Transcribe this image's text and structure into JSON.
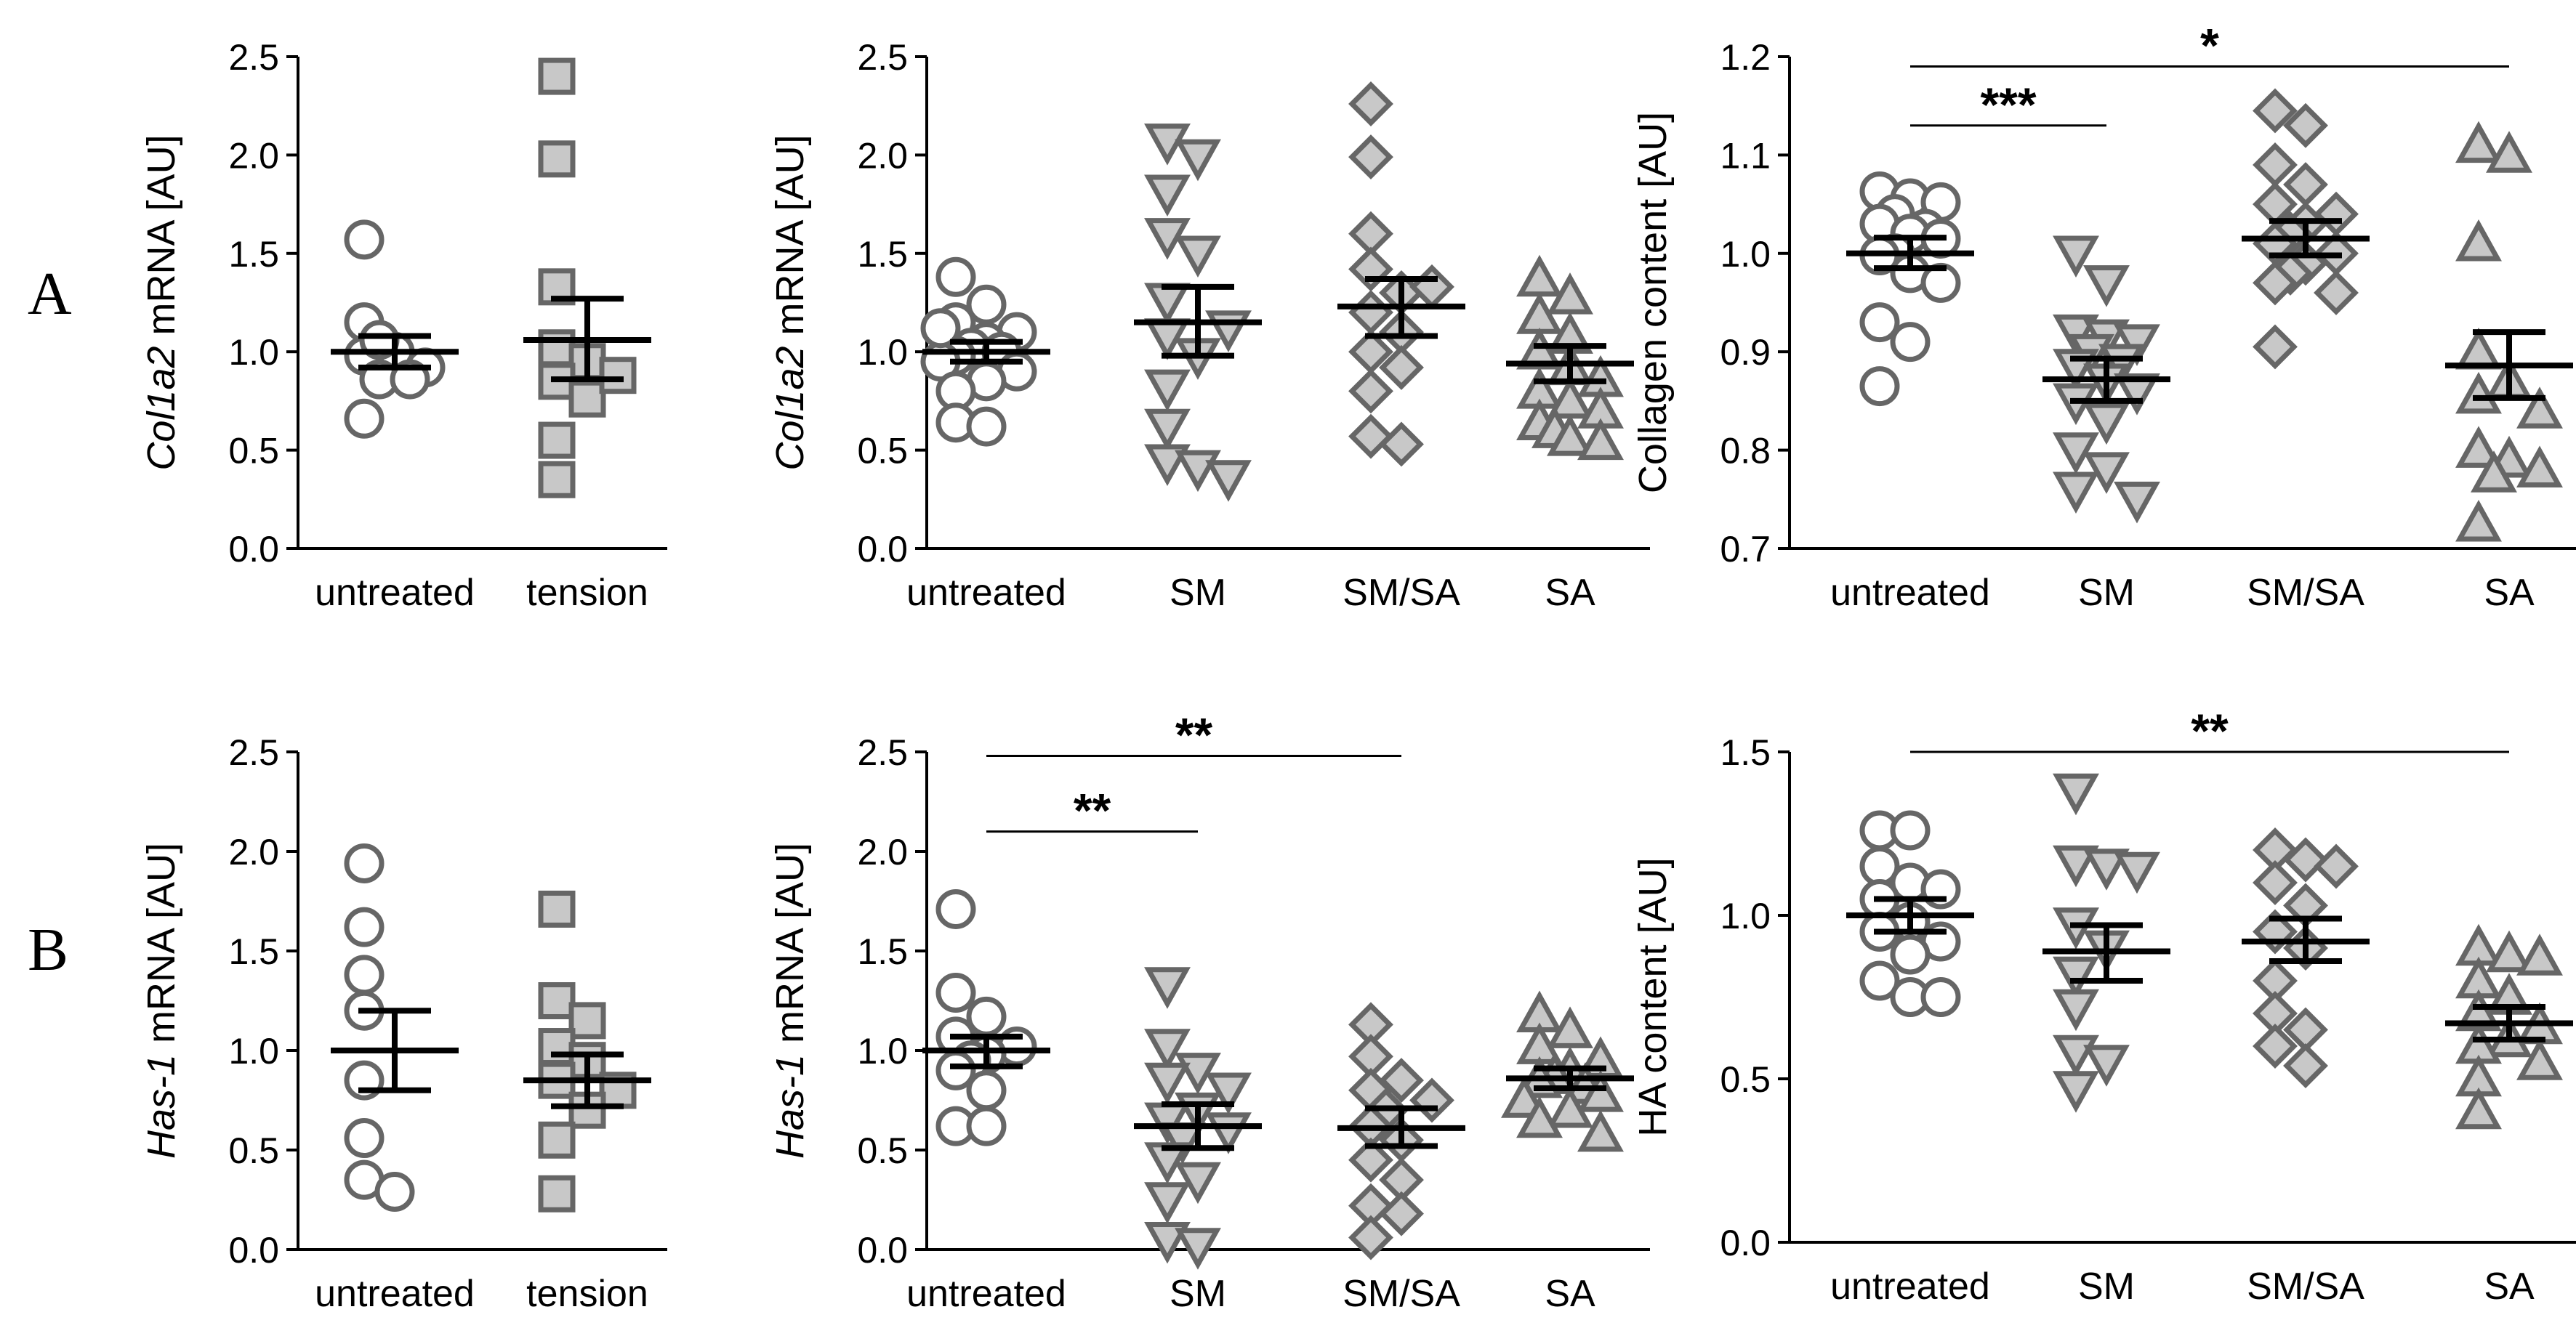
{
  "row_labels": [
    "A",
    "B"
  ],
  "chart_data": [
    {
      "type": "scatter",
      "panel": "A1",
      "ylabel_italic": "Col1a2",
      "ylabel_rest": " mRNA [AU]",
      "ylim": [
        0,
        2.5
      ],
      "yticks": [
        "0.0",
        "0.5",
        "1.0",
        "1.5",
        "2.0",
        "2.5"
      ],
      "categories": [
        "untreated",
        "tension"
      ],
      "groups": [
        {
          "name": "untreated",
          "marker": "circle-open",
          "values": [
            1.57,
            1.15,
            1.0,
            0.98,
            0.92,
            0.86,
            0.86,
            1.06,
            0.66
          ],
          "mean": 1.0,
          "sem_low": 0.92,
          "sem_high": 1.08
        },
        {
          "name": "tension",
          "marker": "square-filled",
          "values": [
            2.4,
            1.98,
            1.33,
            1.02,
            0.95,
            0.85,
            0.76,
            0.55,
            0.35,
            0.88
          ],
          "mean": 1.06,
          "sem_low": 0.86,
          "sem_high": 1.27
        }
      ],
      "significance": []
    },
    {
      "type": "scatter",
      "panel": "A2",
      "ylabel_italic": "Col1a2",
      "ylabel_rest": " mRNA [AU]",
      "ylim": [
        0,
        2.5
      ],
      "yticks": [
        "0.0",
        "0.5",
        "1.0",
        "1.5",
        "2.0",
        "2.5"
      ],
      "categories": [
        "untreated",
        "SM",
        "SM/SA",
        "SA"
      ],
      "groups": [
        {
          "name": "untreated",
          "marker": "circle-open",
          "values": [
            1.38,
            1.24,
            1.15,
            1.1,
            1.05,
            1.02,
            1.0,
            0.98,
            0.95,
            0.9,
            0.85,
            0.8,
            0.64,
            0.62,
            1.12
          ],
          "mean": 1.0,
          "sem_low": 0.95,
          "sem_high": 1.05
        },
        {
          "name": "SM",
          "marker": "triangle-down",
          "values": [
            2.07,
            1.99,
            1.81,
            1.59,
            1.5,
            1.26,
            1.08,
            0.98,
            0.82,
            0.62,
            0.44,
            0.41,
            0.36,
            1.12
          ],
          "mean": 1.15,
          "sem_low": 0.98,
          "sem_high": 1.33
        },
        {
          "name": "SM/SA",
          "marker": "diamond",
          "values": [
            2.26,
            1.99,
            1.6,
            1.42,
            1.3,
            1.2,
            1.1,
            1.0,
            0.92,
            0.8,
            0.57,
            0.53,
            1.33
          ],
          "mean": 1.23,
          "sem_low": 1.08,
          "sem_high": 1.37
        },
        {
          "name": "SA",
          "marker": "triangle-up",
          "values": [
            1.37,
            1.28,
            1.18,
            1.08,
            1.0,
            0.92,
            0.86,
            0.8,
            0.75,
            0.7,
            0.64,
            0.6,
            0.56,
            0.54
          ],
          "mean": 0.94,
          "sem_low": 0.85,
          "sem_high": 1.03
        }
      ],
      "significance": []
    },
    {
      "type": "scatter",
      "panel": "A3",
      "ylabel_italic": "",
      "ylabel_rest": "Collagen content [AU]",
      "ylim": [
        0.7,
        1.2
      ],
      "yticks": [
        "0.7",
        "0.8",
        "0.9",
        "1.0",
        "1.1",
        "1.2"
      ],
      "categories": [
        "untreated",
        "SM",
        "SM/SA",
        "SA"
      ],
      "groups": [
        {
          "name": "untreated",
          "marker": "circle-open",
          "values": [
            1.063,
            1.056,
            1.052,
            1.04,
            1.03,
            1.025,
            1.02,
            1.015,
            1.0,
            0.998,
            0.98,
            0.97,
            0.93,
            0.91,
            0.865
          ],
          "mean": 1.0,
          "sem_low": 0.985,
          "sem_high": 1.016
        },
        {
          "name": "SM",
          "marker": "triangle-down",
          "values": [
            1.0,
            0.97,
            0.92,
            0.915,
            0.91,
            0.9,
            0.89,
            0.885,
            0.87,
            0.86,
            0.85,
            0.83,
            0.8,
            0.78,
            0.76,
            0.75
          ],
          "mean": 0.872,
          "sem_low": 0.85,
          "sem_high": 0.893
        },
        {
          "name": "SM/SA",
          "marker": "diamond",
          "values": [
            1.145,
            1.13,
            1.09,
            1.07,
            1.05,
            1.04,
            1.03,
            1.02,
            1.01,
            1.0,
            0.99,
            0.98,
            0.97,
            0.96,
            0.905
          ],
          "mean": 1.015,
          "sem_low": 0.998,
          "sem_high": 1.033
        },
        {
          "name": "SA",
          "marker": "triangle-up",
          "values": [
            1.11,
            1.1,
            1.01,
            0.9,
            0.87,
            0.855,
            0.84,
            0.8,
            0.79,
            0.78,
            0.775,
            0.725
          ],
          "mean": 0.886,
          "sem_low": 0.853,
          "sem_high": 0.92
        }
      ],
      "significance": [
        {
          "from": 0,
          "to": 1,
          "y": 1.13,
          "label": "***"
        },
        {
          "from": 0,
          "to": 3,
          "y": 1.19,
          "label": "*"
        }
      ]
    },
    {
      "type": "scatter",
      "panel": "B1",
      "ylabel_italic": "Has-1",
      "ylabel_rest": " mRNA [AU]",
      "ylim": [
        0,
        2.5
      ],
      "yticks": [
        "0.0",
        "0.5",
        "1.0",
        "1.5",
        "2.0",
        "2.5"
      ],
      "categories": [
        "untreated",
        "tension"
      ],
      "groups": [
        {
          "name": "untreated",
          "marker": "circle-open",
          "values": [
            1.94,
            1.62,
            1.38,
            1.2,
            0.85,
            0.56,
            0.35,
            0.29
          ],
          "mean": 1.0,
          "sem_low": 0.8,
          "sem_high": 1.2
        },
        {
          "name": "tension",
          "marker": "square-filled",
          "values": [
            1.71,
            1.25,
            1.15,
            1.02,
            0.95,
            0.85,
            0.8,
            0.7,
            0.55,
            0.28
          ],
          "mean": 0.85,
          "sem_low": 0.72,
          "sem_high": 0.98
        }
      ],
      "significance": []
    },
    {
      "type": "scatter",
      "panel": "B2",
      "ylabel_italic": "Has-1",
      "ylabel_rest": " mRNA [AU]",
      "ylim": [
        0,
        2.5
      ],
      "yticks": [
        "0.0",
        "0.5",
        "1.0",
        "1.5",
        "2.0",
        "2.5"
      ],
      "categories": [
        "untreated",
        "SM",
        "SM/SA",
        "SA"
      ],
      "groups": [
        {
          "name": "untreated",
          "marker": "circle-open",
          "values": [
            1.71,
            1.29,
            1.17,
            1.07,
            1.02,
            0.98,
            0.95,
            0.9,
            0.8,
            0.62,
            0.62
          ],
          "mean": 1.0,
          "sem_low": 0.92,
          "sem_high": 1.07
        },
        {
          "name": "SM",
          "marker": "triangle-down",
          "values": [
            1.33,
            1.02,
            0.9,
            0.85,
            0.8,
            0.7,
            0.65,
            0.6,
            0.55,
            0.45,
            0.35,
            0.25,
            0.05,
            0.02
          ],
          "mean": 0.62,
          "sem_low": 0.51,
          "sem_high": 0.73
        },
        {
          "name": "SM/SA",
          "marker": "diamond",
          "values": [
            1.13,
            0.97,
            0.85,
            0.8,
            0.75,
            0.7,
            0.62,
            0.55,
            0.45,
            0.35,
            0.22,
            0.18,
            0.06
          ],
          "mean": 0.61,
          "sem_low": 0.52,
          "sem_high": 0.71
        },
        {
          "name": "SA",
          "marker": "triangle-up",
          "values": [
            1.18,
            1.1,
            1.02,
            0.95,
            0.9,
            0.87,
            0.85,
            0.82,
            0.78,
            0.75,
            0.7,
            0.65,
            0.58
          ],
          "mean": 0.86,
          "sem_low": 0.81,
          "sem_high": 0.91
        }
      ],
      "significance": [
        {
          "from": 0,
          "to": 1,
          "y": 2.1,
          "label": "**"
        },
        {
          "from": 0,
          "to": 2,
          "y": 2.48,
          "label": "**"
        }
      ]
    },
    {
      "type": "scatter",
      "panel": "B3",
      "ylabel_italic": "",
      "ylabel_rest": "HA content [AU]",
      "ylim": [
        0,
        1.5
      ],
      "yticks": [
        "0.0",
        "0.5",
        "1.0",
        "1.5"
      ],
      "categories": [
        "untreated",
        "SM",
        "SM/SA",
        "SA"
      ],
      "groups": [
        {
          "name": "untreated",
          "marker": "circle-open",
          "values": [
            1.26,
            1.26,
            1.15,
            1.1,
            1.08,
            1.05,
            0.98,
            0.95,
            0.92,
            0.88,
            0.8,
            0.75,
            0.75
          ],
          "mean": 1.0,
          "sem_low": 0.95,
          "sem_high": 1.05
        },
        {
          "name": "SM",
          "marker": "triangle-down",
          "values": [
            1.38,
            1.16,
            1.15,
            1.14,
            0.97,
            0.9,
            0.82,
            0.72,
            0.58,
            0.55,
            0.47
          ],
          "mean": 0.89,
          "sem_low": 0.8,
          "sem_high": 0.97
        },
        {
          "name": "SM/SA",
          "marker": "diamond",
          "values": [
            1.2,
            1.17,
            1.15,
            1.1,
            1.03,
            0.95,
            0.9,
            0.8,
            0.7,
            0.65,
            0.6,
            0.54
          ],
          "mean": 0.92,
          "sem_low": 0.86,
          "sem_high": 0.99
        },
        {
          "name": "SA",
          "marker": "triangle-up",
          "values": [
            0.9,
            0.88,
            0.87,
            0.8,
            0.75,
            0.7,
            0.66,
            0.62,
            0.6,
            0.55,
            0.5,
            0.4
          ],
          "mean": 0.67,
          "sem_low": 0.62,
          "sem_high": 0.72
        }
      ],
      "significance": [
        {
          "from": 0,
          "to": 3,
          "y": 1.5,
          "label": "**"
        }
      ]
    }
  ]
}
